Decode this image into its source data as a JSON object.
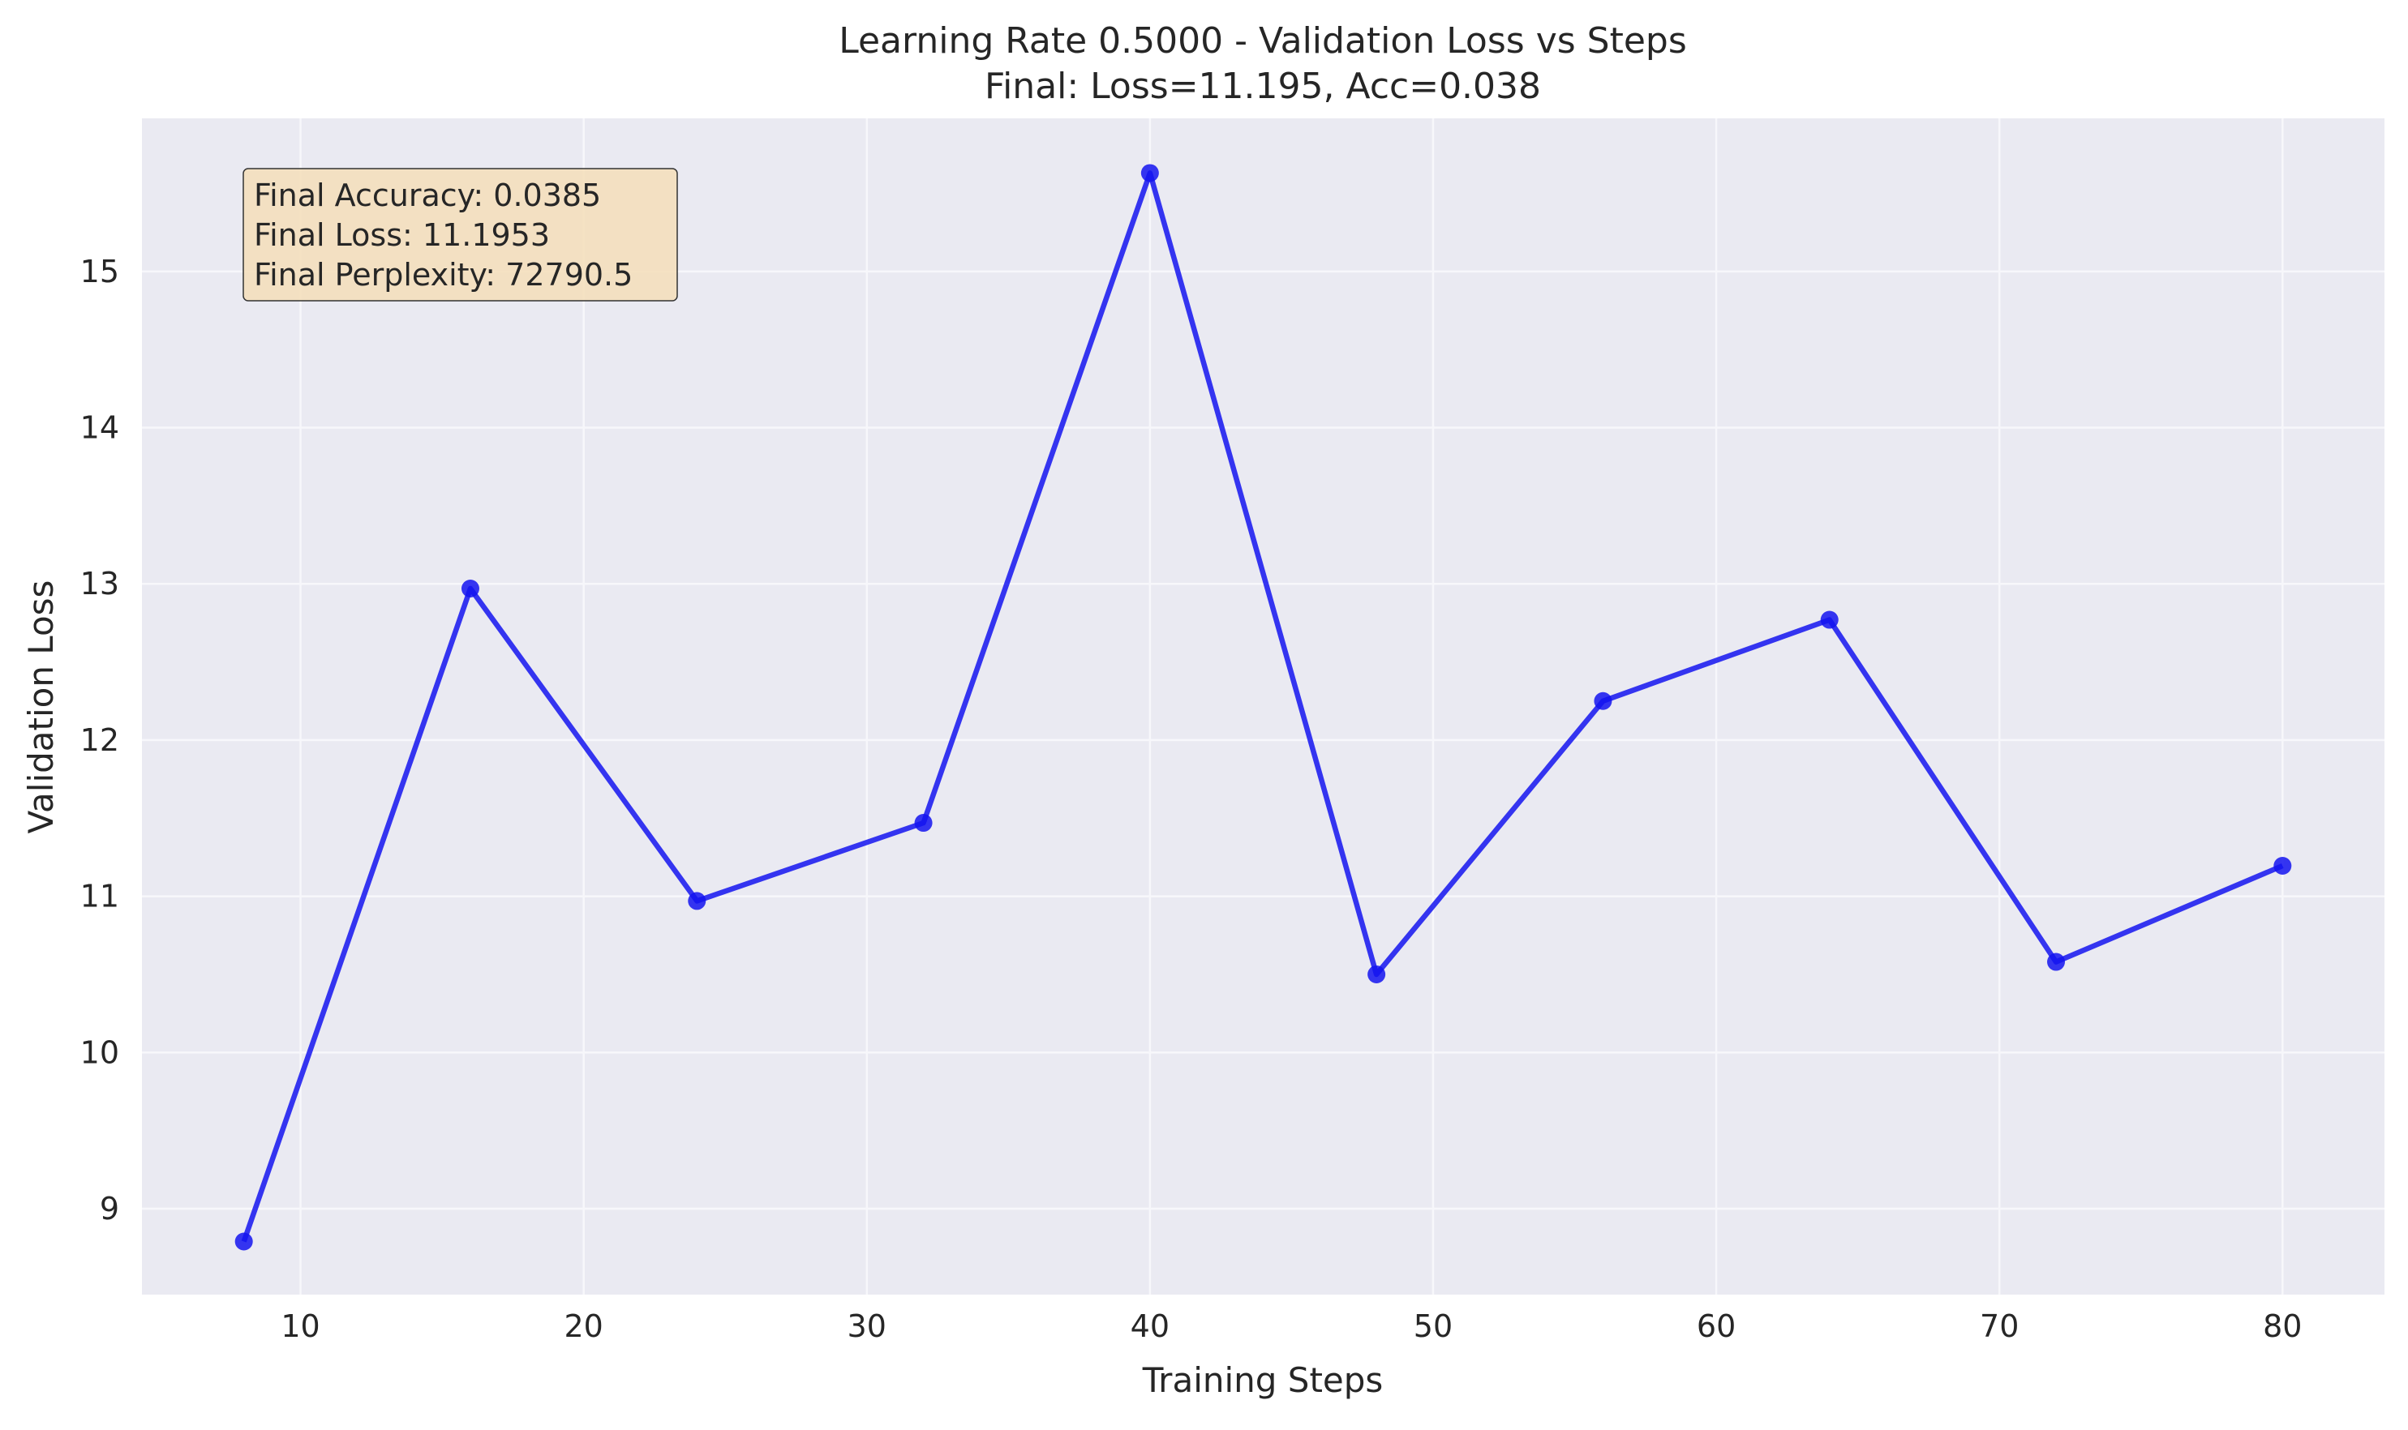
{
  "chart_data": {
    "type": "line",
    "title": "Learning Rate 0.5000 - Validation Loss vs Steps",
    "subtitle": "Final: Loss=11.195, Acc=0.038",
    "xlabel": "Training Steps",
    "ylabel": "Validation Loss",
    "xlim": [
      4.4,
      83.6
    ],
    "ylim": [
      8.45,
      15.98
    ],
    "xticks": [
      10,
      20,
      30,
      40,
      50,
      60,
      70,
      80
    ],
    "yticks": [
      9,
      10,
      11,
      12,
      13,
      14,
      15
    ],
    "grid": true,
    "series": [
      {
        "x": [
          8,
          16,
          24,
          32,
          40,
          48,
          56,
          64,
          72,
          80
        ],
        "y": [
          8.79,
          12.97,
          10.97,
          11.47,
          15.63,
          10.5,
          12.25,
          12.77,
          10.58,
          11.1953
        ],
        "color": "#1414f0"
      }
    ],
    "annotation": {
      "lines": [
        "Final Accuracy: 0.0385",
        "Final Loss: 11.1953",
        "Final Perplexity: 72790.5"
      ],
      "position": "top-left",
      "background": "#f4dfbc"
    },
    "colors": {
      "plot_background": "#eaeaf2",
      "grid": "#f7f7fb",
      "line": "#1414f0"
    }
  }
}
